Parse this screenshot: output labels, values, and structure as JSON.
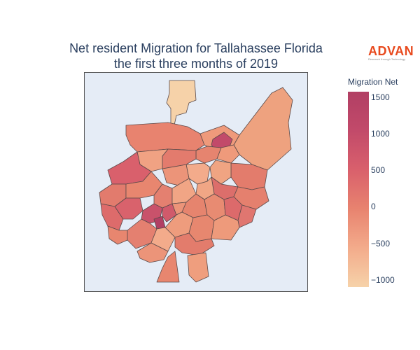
{
  "title": {
    "line1": "Net resident Migration for Tallahassee Florida",
    "line2": "the first three months of 2019"
  },
  "logo": {
    "wordmark": "ADVAN",
    "tagline": "Research through Technology"
  },
  "colorbar": {
    "title": "Migration Net",
    "ticks": [
      "1500",
      "1000",
      "500",
      "0",
      "−500",
      "−1000"
    ],
    "range": [
      -1100,
      1580
    ],
    "colors": [
      "#f6d2a9",
      "#f3ab8b",
      "#e8836f",
      "#d9606c",
      "#c24a6a",
      "#b13f64"
    ]
  },
  "map": {
    "background": "#e5ecf6",
    "boundary_color": "#444444"
  }
}
